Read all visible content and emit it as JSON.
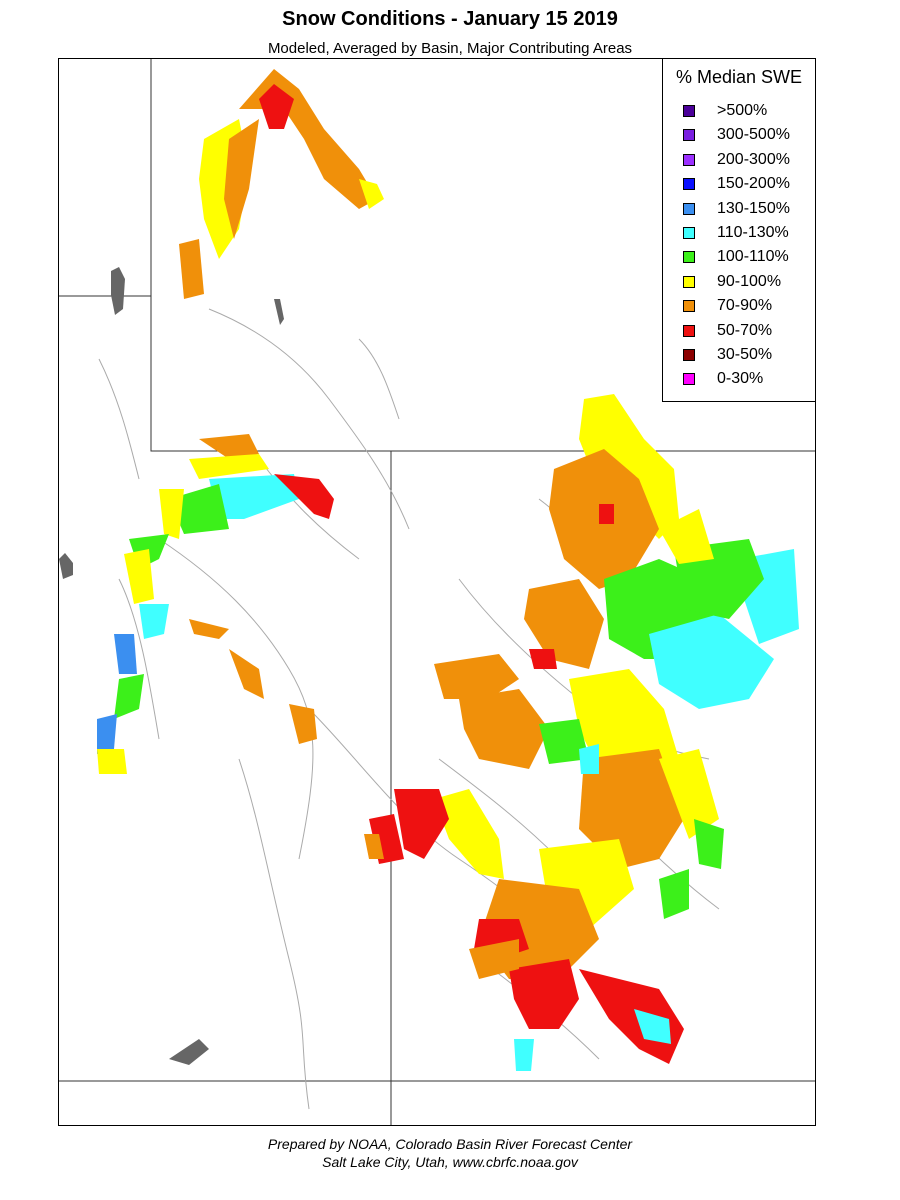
{
  "header": {
    "title": "Snow Conditions - January 15 2019",
    "subtitle": "Modeled, Averaged by Basin, Major Contributing Areas"
  },
  "legend": {
    "title": "% Median SWE",
    "items": [
      {
        "label": ">500%",
        "color": "#4b0099"
      },
      {
        "label": "300-500%",
        "color": "#7a1fe0"
      },
      {
        "label": "200-300%",
        "color": "#9b30ff"
      },
      {
        "label": "150-200%",
        "color": "#0a10ff"
      },
      {
        "label": "130-150%",
        "color": "#3b8ff0"
      },
      {
        "label": "110-130%",
        "color": "#40ffff"
      },
      {
        "label": "100-110%",
        "color": "#3cf01a"
      },
      {
        "label": "90-100%",
        "color": "#ffff00"
      },
      {
        "label": "70-90%",
        "color": "#f0900a"
      },
      {
        "label": "50-70%",
        "color": "#ee1111"
      },
      {
        "label": "30-50%",
        "color": "#8b0000"
      },
      {
        "label": "0-30%",
        "color": "#ff00ff"
      }
    ]
  },
  "footer": {
    "line1": "Prepared by NOAA, Colorado Basin River Forecast Center",
    "line2": "Salt Lake City, Utah, www.cbrfc.noaa.gov"
  }
}
